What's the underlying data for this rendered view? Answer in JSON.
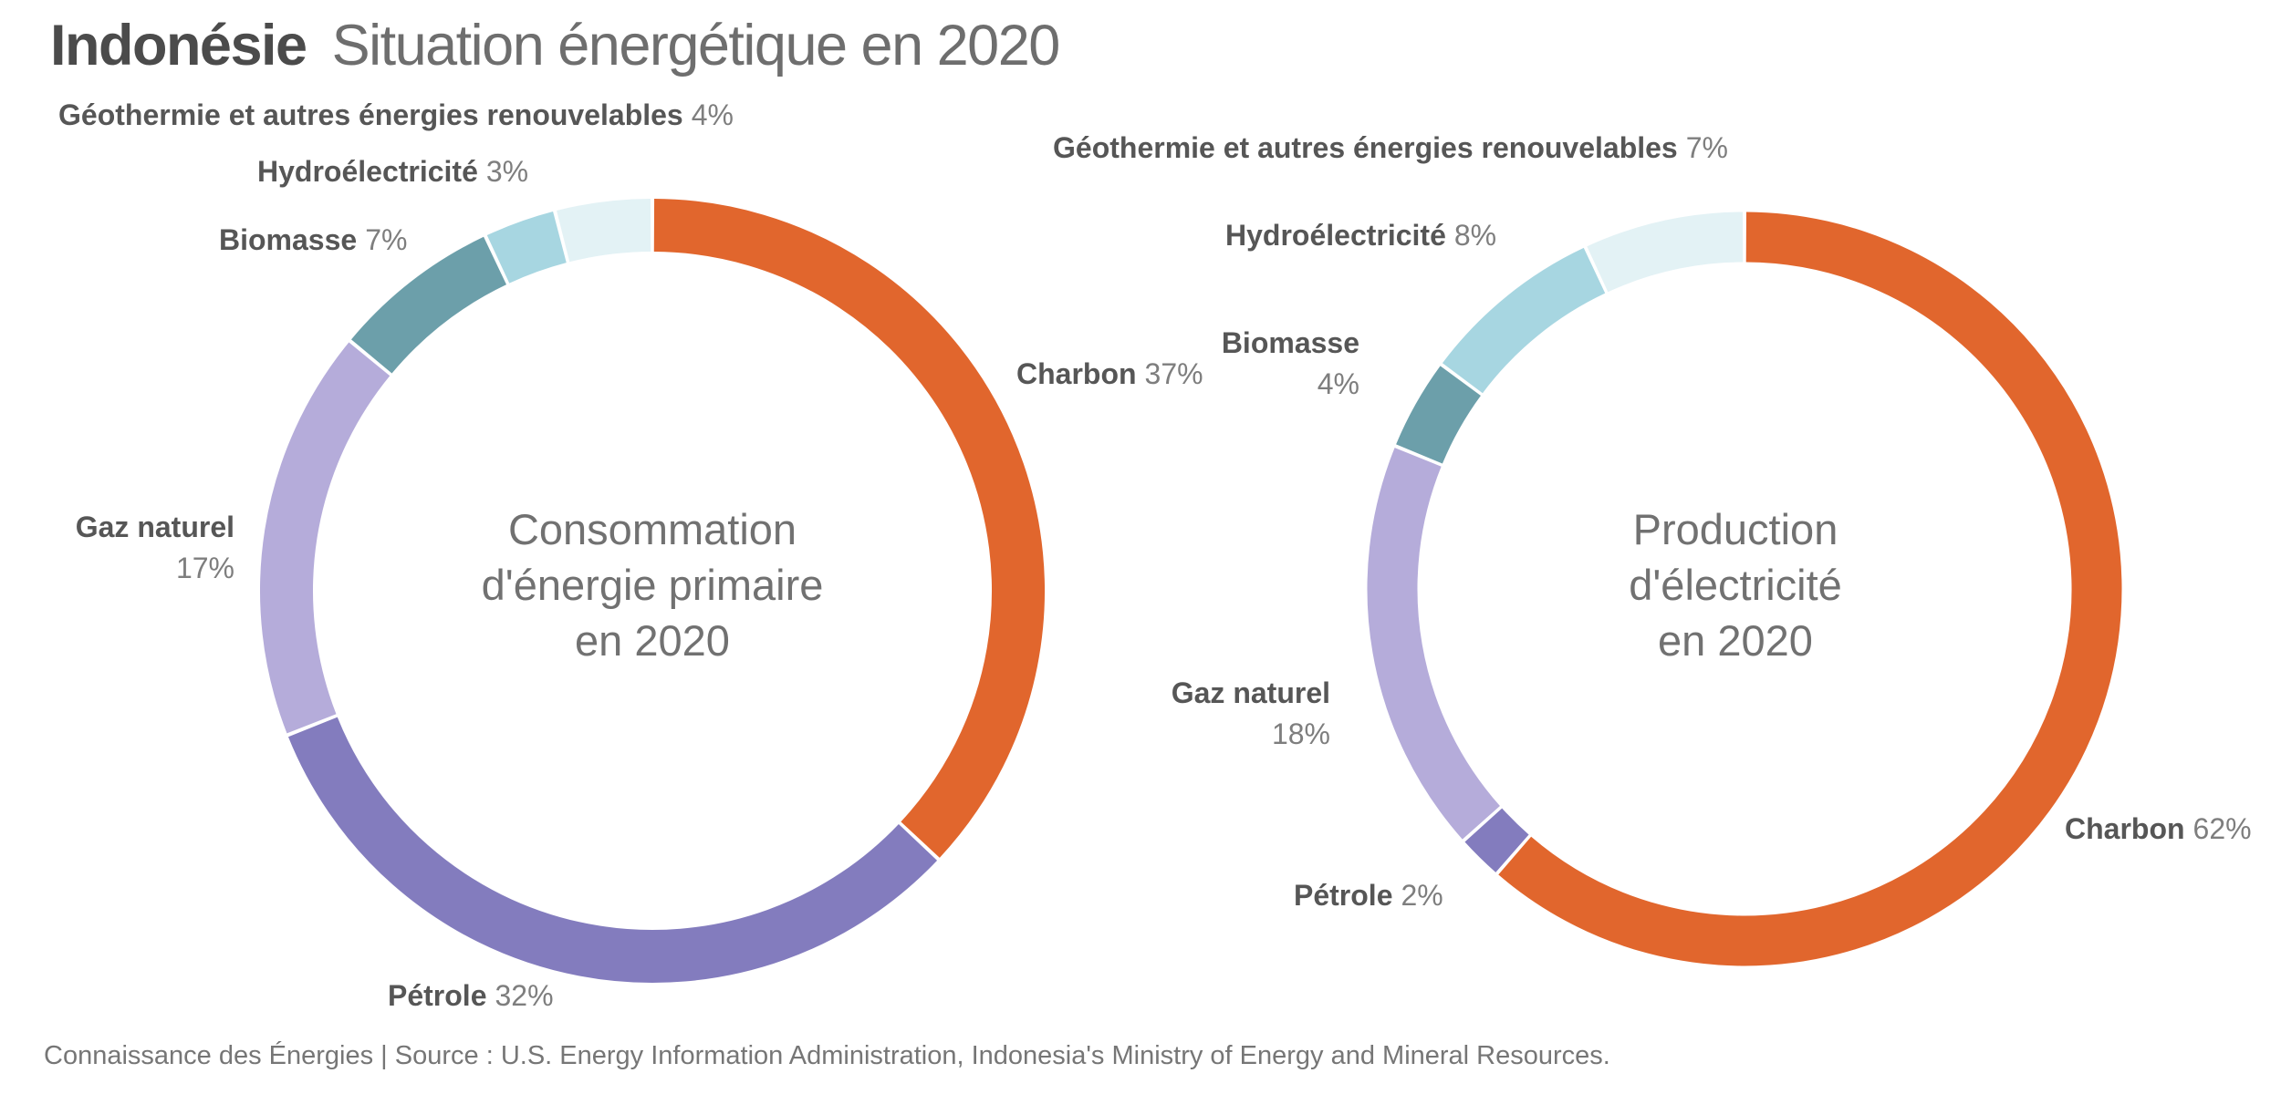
{
  "title": {
    "bold": "Indonésie",
    "rest": "Situation énergétique en 2020"
  },
  "footer": "Connaissance des Énergies | Source : U.S. Energy Information Administration, Indonesia's Ministry of Energy and Mineral Resources.",
  "palette": {
    "charbon": "#E1662D",
    "petrole": "#837CBE",
    "gaz_naturel": "#B5ACDA",
    "biomasse": "#6C9FAA",
    "hydroelectricite": "#A7D6E1",
    "geothermie": "#E3F2F5"
  },
  "chart_data": [
    {
      "type": "pie",
      "subtype": "donut",
      "title": "Consommation d'énergie primaire en 2020",
      "center_lines": [
        "Consommation",
        "d'énergie primaire",
        "en 2020"
      ],
      "start_angle_deg": 0,
      "direction": "clockwise",
      "unit": "%",
      "segments": [
        {
          "label": "Charbon",
          "value": 37,
          "value_label": "37%",
          "color": "#E1662D"
        },
        {
          "label": "Pétrole",
          "value": 32,
          "value_label": "32%",
          "color": "#837CBE"
        },
        {
          "label": "Gaz naturel",
          "value": 17,
          "value_label": "17%",
          "color": "#B5ACDA"
        },
        {
          "label": "Biomasse",
          "value": 7,
          "value_label": "7%",
          "color": "#6C9FAA"
        },
        {
          "label": "Hydroélectricité",
          "value": 3,
          "value_label": "3%",
          "color": "#A7D6E1"
        },
        {
          "label": "Géothermie et autres énergies renouvelables",
          "value": 4,
          "value_label": "4%",
          "color": "#E3F2F5"
        }
      ]
    },
    {
      "type": "pie",
      "subtype": "donut",
      "title": "Production d'électricité en 2020",
      "center_lines": [
        "Production",
        "d'électricité",
        "en 2020"
      ],
      "start_angle_deg": 0,
      "direction": "clockwise",
      "unit": "%",
      "segments": [
        {
          "label": "Charbon",
          "value": 62,
          "value_label": "62%",
          "color": "#E1662D"
        },
        {
          "label": "Pétrole",
          "value": 2,
          "value_label": "2%",
          "color": "#837CBE"
        },
        {
          "label": "Gaz naturel",
          "value": 18,
          "value_label": "18%",
          "color": "#B5ACDA"
        },
        {
          "label": "Biomasse",
          "value": 4,
          "value_label": "4%",
          "color": "#6C9FAA"
        },
        {
          "label": "Hydroélectricité",
          "value": 8,
          "value_label": "8%",
          "color": "#A7D6E1"
        },
        {
          "label": "Géothermie et autres énergies renouvelables",
          "value": 7,
          "value_label": "7%",
          "color": "#E3F2F5"
        }
      ]
    }
  ]
}
